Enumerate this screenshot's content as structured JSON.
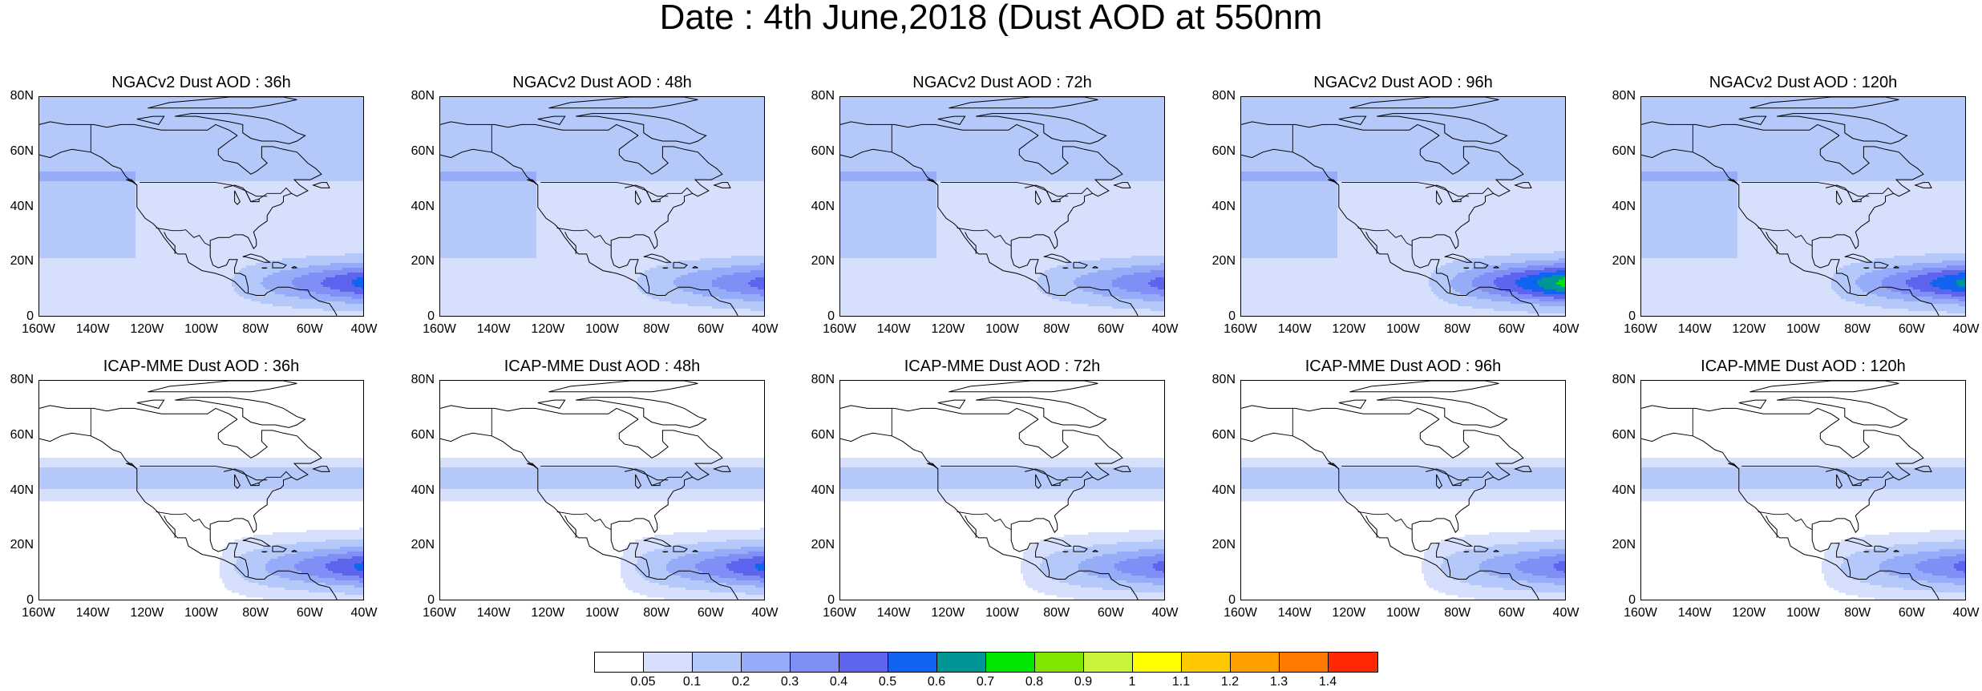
{
  "title": "Date : 4th June,2018 (Dust AOD at 550nm",
  "lat_ticks": [
    "80N",
    "60N",
    "40N",
    "20N",
    "0"
  ],
  "lon_ticks": [
    "160W",
    "140W",
    "120W",
    "100W",
    "80W",
    "60W",
    "40W"
  ],
  "map_extent": {
    "lon": [
      -160,
      -40
    ],
    "lat": [
      0,
      80
    ]
  },
  "panels": [
    {
      "title": "NGACv2 Dust AOD : 36h",
      "model": "NGACv2",
      "lead": "36h",
      "max_hint": 0.5
    },
    {
      "title": "NGACv2 Dust AOD : 48h",
      "model": "NGACv2",
      "lead": "48h",
      "max_hint": 0.4
    },
    {
      "title": "NGACv2 Dust AOD : 72h",
      "model": "NGACv2",
      "lead": "72h",
      "max_hint": 0.4
    },
    {
      "title": "NGACv2 Dust AOD : 96h",
      "model": "NGACv2",
      "lead": "96h",
      "max_hint": 0.7
    },
    {
      "title": "NGACv2 Dust AOD : 120h",
      "model": "NGACv2",
      "lead": "120h",
      "max_hint": 0.6
    },
    {
      "title": "ICAP-MME Dust AOD : 36h",
      "model": "ICAP-MME",
      "lead": "36h",
      "max_hint": 0.5
    },
    {
      "title": "ICAP-MME Dust AOD : 48h",
      "model": "ICAP-MME",
      "lead": "48h",
      "max_hint": 0.5
    },
    {
      "title": "ICAP-MME Dust AOD : 72h",
      "model": "ICAP-MME",
      "lead": "72h",
      "max_hint": 0.4
    },
    {
      "title": "ICAP-MME Dust AOD : 96h",
      "model": "ICAP-MME",
      "lead": "96h",
      "max_hint": 0.4
    },
    {
      "title": "ICAP-MME Dust AOD : 120h",
      "model": "ICAP-MME",
      "lead": "120h",
      "max_hint": 0.4
    }
  ],
  "colorbar": {
    "labels": [
      "0.05",
      "0.1",
      "0.2",
      "0.3",
      "0.4",
      "0.5",
      "0.6",
      "0.7",
      "0.8",
      "0.9",
      "1",
      "1.1",
      "1.2",
      "1.3",
      "1.4"
    ],
    "colors": [
      "#ffffff",
      "#d6e0fc",
      "#b4c8fa",
      "#96acf8",
      "#7f8ff5",
      "#5f64ef",
      "#1064f0",
      "#009696",
      "#00e600",
      "#82e600",
      "#c8f53c",
      "#ffff00",
      "#ffc800",
      "#ffa000",
      "#ff7800",
      "#ff2800"
    ]
  },
  "colors": {
    "coastline": "#000000",
    "frame": "#000000"
  }
}
